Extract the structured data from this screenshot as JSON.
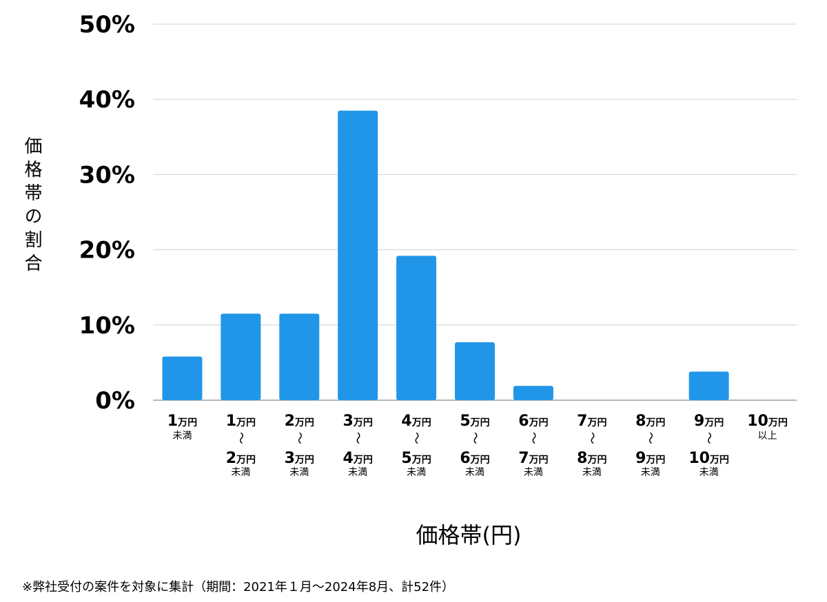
{
  "chart_data": {
    "type": "bar",
    "ylabel": "価格帯の割合",
    "xlabel": "価格帯(円)",
    "ylim": [
      0,
      50
    ],
    "yticks": [
      "0%",
      "10%",
      "20%",
      "30%",
      "40%",
      "50%"
    ],
    "ytick_values": [
      0,
      10,
      20,
      30,
      40,
      50
    ],
    "grid": true,
    "bar_color": "#2196E8",
    "categories": [
      {
        "from": "1",
        "from_unit": "万円",
        "to": "",
        "to_unit": "",
        "note": "未満",
        "connector": ""
      },
      {
        "from": "1",
        "from_unit": "万円",
        "to": "2",
        "to_unit": "万円",
        "note": "未満",
        "connector": "〜"
      },
      {
        "from": "2",
        "from_unit": "万円",
        "to": "3",
        "to_unit": "万円",
        "note": "未満",
        "connector": "〜"
      },
      {
        "from": "3",
        "from_unit": "万円",
        "to": "4",
        "to_unit": "万円",
        "note": "未満",
        "connector": "〜"
      },
      {
        "from": "4",
        "from_unit": "万円",
        "to": "5",
        "to_unit": "万円",
        "note": "未満",
        "connector": "〜"
      },
      {
        "from": "5",
        "from_unit": "万円",
        "to": "6",
        "to_unit": "万円",
        "note": "未満",
        "connector": "〜"
      },
      {
        "from": "6",
        "from_unit": "万円",
        "to": "7",
        "to_unit": "万円",
        "note": "未満",
        "connector": "〜"
      },
      {
        "from": "7",
        "from_unit": "万円",
        "to": "8",
        "to_unit": "万円",
        "note": "未満",
        "connector": "〜"
      },
      {
        "from": "8",
        "from_unit": "万円",
        "to": "9",
        "to_unit": "万円",
        "note": "未満",
        "connector": "〜"
      },
      {
        "from": "9",
        "from_unit": "万円",
        "to": "10",
        "to_unit": "万円",
        "note": "未満",
        "connector": "〜"
      },
      {
        "from": "10",
        "from_unit": "万円",
        "to": "",
        "to_unit": "",
        "note": "以上",
        "connector": ""
      }
    ],
    "values": [
      5.8,
      11.5,
      11.5,
      38.5,
      19.2,
      7.7,
      1.9,
      0,
      0,
      3.8,
      0
    ]
  },
  "footnote": "※弊社受付の案件を対象に集計（期間：2021年１月〜2024年8月、計52件）"
}
